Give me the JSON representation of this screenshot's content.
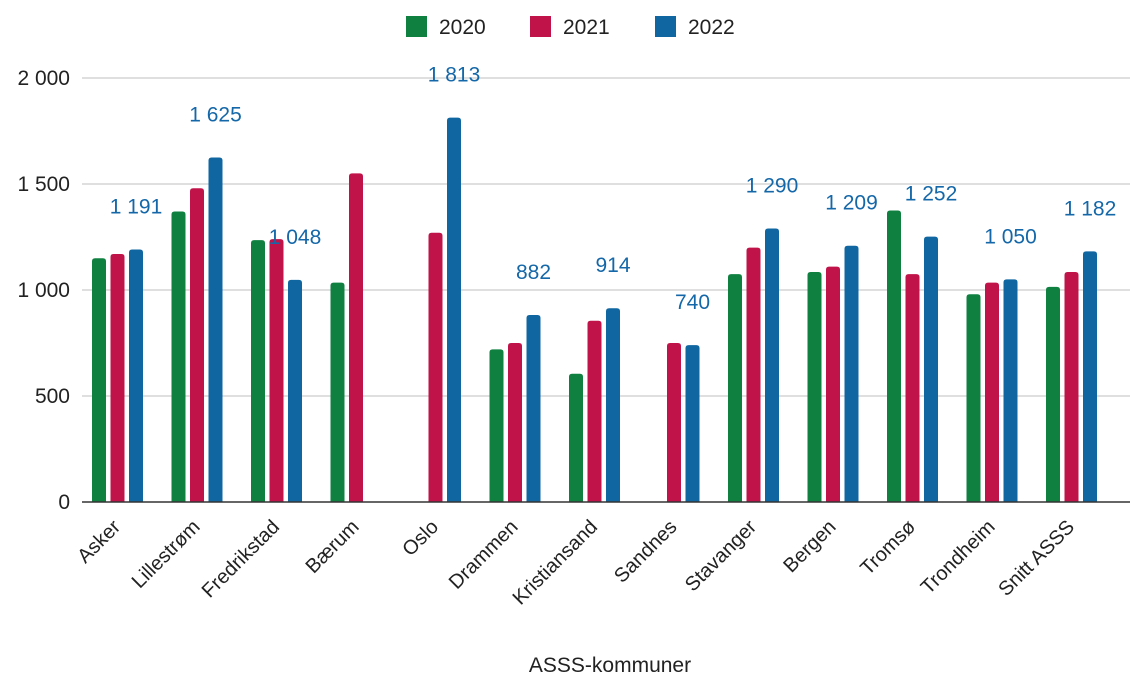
{
  "chart_data": {
    "type": "bar",
    "title": "",
    "xlabel": "ASSS-kommuner",
    "ylabel": "",
    "ylim": [
      0,
      2000
    ],
    "yticks": [
      0,
      500,
      1000,
      1500,
      2000
    ],
    "ytick_labels": [
      "0",
      "500",
      "1 000",
      "1 500",
      "2 000"
    ],
    "grid": true,
    "legend_position": "top-center",
    "categories": [
      "Asker",
      "Lillestrøm",
      "Fredrikstad",
      "Bærum",
      "Oslo",
      "Drammen",
      "Kristiansand",
      "Sandnes",
      "Stavanger",
      "Bergen",
      "Tromsø",
      "Trondheim",
      "Snitt ASSS"
    ],
    "series": [
      {
        "name": "2020",
        "color": "#0f8040",
        "values": [
          1150,
          1370,
          1235,
          1035,
          null,
          720,
          605,
          null,
          1075,
          1085,
          1375,
          980,
          1015
        ]
      },
      {
        "name": "2021",
        "color": "#c0134a",
        "values": [
          1170,
          1480,
          1240,
          1550,
          1270,
          750,
          855,
          750,
          1200,
          1110,
          1075,
          1035,
          1085
        ]
      },
      {
        "name": "2022",
        "color": "#0f66a0",
        "values": [
          1191,
          1625,
          1048,
          null,
          1813,
          882,
          914,
          740,
          1290,
          1209,
          1252,
          1050,
          1182
        ]
      }
    ],
    "data_labels": [
      {
        "category": "Asker",
        "series": "2022",
        "text": "1 191"
      },
      {
        "category": "Lillestrøm",
        "series": "2022",
        "text": "1 625"
      },
      {
        "category": "Fredrikstad",
        "series": "2022",
        "text": "1 048"
      },
      {
        "category": "Oslo",
        "series": "2022",
        "text": "1 813"
      },
      {
        "category": "Drammen",
        "series": "2022",
        "text": "882"
      },
      {
        "category": "Kristiansand",
        "series": "2022",
        "text": "914"
      },
      {
        "category": "Sandnes",
        "series": "2022",
        "text": "740"
      },
      {
        "category": "Stavanger",
        "series": "2022",
        "text": "1 290"
      },
      {
        "category": "Bergen",
        "series": "2022",
        "text": "1 209"
      },
      {
        "category": "Tromsø",
        "series": "2022",
        "text": "1 252"
      },
      {
        "category": "Trondheim",
        "series": "2022",
        "text": "1 050"
      },
      {
        "category": "Snitt ASSS",
        "series": "2022",
        "text": "1 182"
      }
    ],
    "data_label_color": "#1467a8",
    "grid_color": "#cccccc",
    "axis_color": "#333333"
  }
}
